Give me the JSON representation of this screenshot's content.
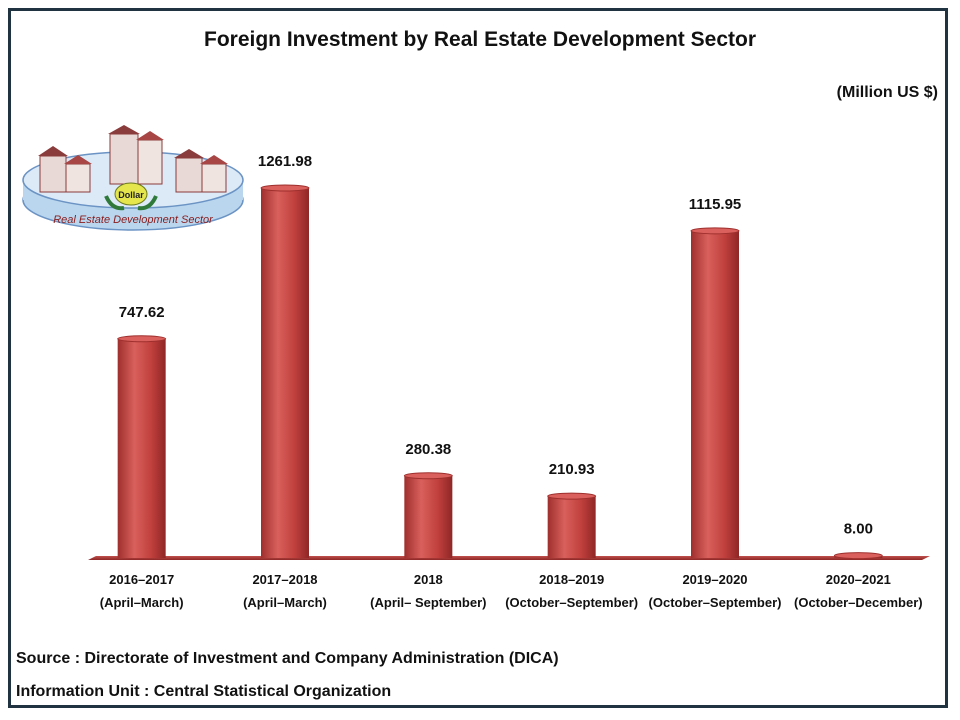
{
  "chart_data": {
    "type": "bar",
    "title": "Foreign Investment by Real Estate Development Sector",
    "unit_label": "(Million US $)",
    "categories": [
      [
        "2016–2017",
        "(April–March)"
      ],
      [
        "2017–2018",
        "(April–March)"
      ],
      [
        "2018",
        "(April– September)"
      ],
      [
        "2018–2019",
        "(October–September)"
      ],
      [
        "2019–2020",
        "(October–September)"
      ],
      [
        "2020–2021",
        "(October–December)"
      ]
    ],
    "values": [
      747.62,
      1261.98,
      280.38,
      210.93,
      1115.95,
      8.0
    ],
    "value_labels": [
      "747.62",
      "1261.98",
      "280.38",
      "210.93",
      "1115.95",
      "8.00"
    ],
    "ylim": [
      0,
      1400
    ],
    "grid": false,
    "legend": "none",
    "bar_color": "#c0403d"
  },
  "logo": {
    "caption": "Real Estate Development Sector",
    "bag_label": "Dollar"
  },
  "footer": {
    "source": "Source  :  Directorate of Investment and Company Administration (DICA)",
    "info": "Information Unit : Central Statistical Organization"
  }
}
